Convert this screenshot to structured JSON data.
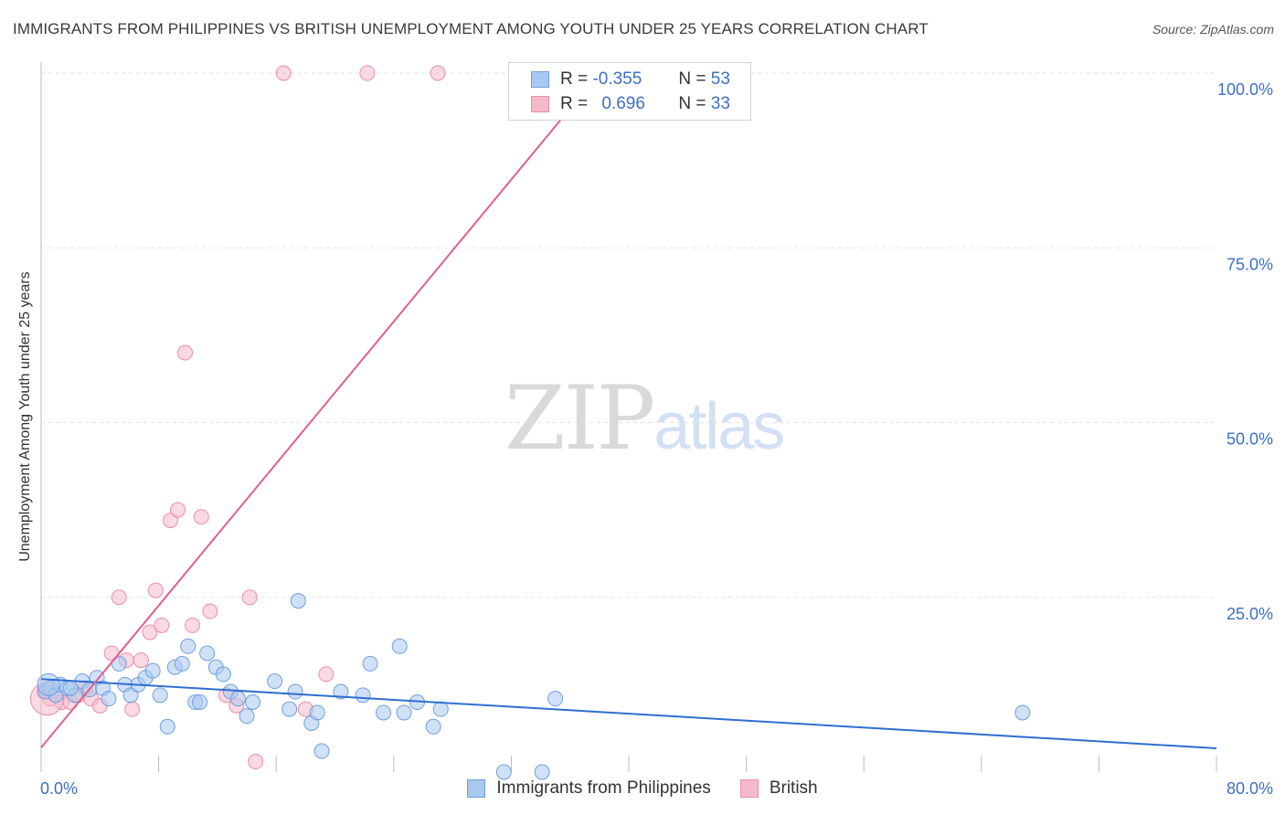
{
  "title": "IMMIGRANTS FROM PHILIPPINES VS BRITISH UNEMPLOYMENT AMONG YOUTH UNDER 25 YEARS CORRELATION CHART",
  "source": "Source: ZipAtlas.com",
  "watermark": {
    "zip": "ZIP",
    "atlas": "atlas"
  },
  "legend": {
    "series1": {
      "r_label": "R =",
      "r_value": "-0.355",
      "n_label": "N =",
      "n_value": "53"
    },
    "series2": {
      "r_label": "R =",
      "r_value": "0.696",
      "n_label": "N =",
      "n_value": "33"
    }
  },
  "colors": {
    "blue_fill": "#a9c8ef",
    "blue_stroke": "#6f9fe0",
    "blue_line": "#2f6fcf",
    "pink_fill": "#f5b9ca",
    "pink_stroke": "#ea8eaa",
    "pink_line": "#e0608a",
    "tick_text": "#3c6fc6",
    "grid": "#e2e2e2"
  },
  "chart_data": {
    "type": "scatter",
    "xlabel": "",
    "ylabel": "Unemployment Among Youth under 25 years",
    "xlim": [
      0,
      80
    ],
    "ylim": [
      0,
      100
    ],
    "x_tick_labels": [
      "0.0%",
      "80.0%"
    ],
    "y_ticks": [
      25,
      50,
      75,
      100
    ],
    "y_tick_labels": [
      "25.0%",
      "50.0%",
      "75.0%",
      "100.0%"
    ],
    "grid": true,
    "series": [
      {
        "name": "Immigrants from Philippines",
        "color": "#a9c8ef",
        "points": [
          [
            0.3,
            11.5
          ],
          [
            0.6,
            12.0
          ],
          [
            1.0,
            11.0
          ],
          [
            1.3,
            12.5
          ],
          [
            1.8,
            12.0
          ],
          [
            2.3,
            11.0
          ],
          [
            2.8,
            13.0
          ],
          [
            3.3,
            11.8
          ],
          [
            3.8,
            13.5
          ],
          [
            4.2,
            12.0
          ],
          [
            4.6,
            10.5
          ],
          [
            5.3,
            15.5
          ],
          [
            5.7,
            12.5
          ],
          [
            6.1,
            11.0
          ],
          [
            6.6,
            12.5
          ],
          [
            7.1,
            13.5
          ],
          [
            7.6,
            14.5
          ],
          [
            8.1,
            11.0
          ],
          [
            8.6,
            6.5
          ],
          [
            9.1,
            15.0
          ],
          [
            9.6,
            15.5
          ],
          [
            10.0,
            18.0
          ],
          [
            10.5,
            10.0
          ],
          [
            10.8,
            10.0
          ],
          [
            11.3,
            17.0
          ],
          [
            11.9,
            15.0
          ],
          [
            12.4,
            14.0
          ],
          [
            12.9,
            11.5
          ],
          [
            13.4,
            10.5
          ],
          [
            14.0,
            8.0
          ],
          [
            14.4,
            10.0
          ],
          [
            15.9,
            13.0
          ],
          [
            16.9,
            9.0
          ],
          [
            17.3,
            11.5
          ],
          [
            17.5,
            24.5
          ],
          [
            18.4,
            7.0
          ],
          [
            18.8,
            8.5
          ],
          [
            19.1,
            3.0
          ],
          [
            20.4,
            11.5
          ],
          [
            21.9,
            11.0
          ],
          [
            22.4,
            15.5
          ],
          [
            23.3,
            8.5
          ],
          [
            24.4,
            18.0
          ],
          [
            24.7,
            8.5
          ],
          [
            25.6,
            10.0
          ],
          [
            26.7,
            6.5
          ],
          [
            27.2,
            9.0
          ],
          [
            31.5,
            0.0
          ],
          [
            34.1,
            0.0
          ],
          [
            35.0,
            10.5
          ],
          [
            66.8,
            8.5
          ],
          [
            0.5,
            12.5
          ],
          [
            2.0,
            12.0
          ]
        ]
      },
      {
        "name": "British",
        "color": "#f5b9ca",
        "points": [
          [
            0.2,
            11.5
          ],
          [
            0.6,
            10.5
          ],
          [
            1.0,
            11.0
          ],
          [
            1.4,
            10.0
          ],
          [
            2.0,
            10.0
          ],
          [
            2.5,
            11.0
          ],
          [
            3.0,
            12.0
          ],
          [
            3.4,
            10.5
          ],
          [
            4.0,
            9.5
          ],
          [
            4.8,
            17.0
          ],
          [
            5.3,
            25.0
          ],
          [
            5.8,
            16.0
          ],
          [
            6.2,
            9.0
          ],
          [
            6.8,
            16.0
          ],
          [
            7.4,
            20.0
          ],
          [
            7.8,
            26.0
          ],
          [
            8.2,
            21.0
          ],
          [
            8.8,
            36.0
          ],
          [
            9.3,
            37.5
          ],
          [
            9.8,
            60.0
          ],
          [
            10.3,
            21.0
          ],
          [
            10.9,
            36.5
          ],
          [
            11.5,
            23.0
          ],
          [
            12.6,
            11.0
          ],
          [
            13.3,
            9.5
          ],
          [
            14.2,
            25.0
          ],
          [
            14.6,
            1.5
          ],
          [
            16.5,
            100.0
          ],
          [
            18.0,
            9.0
          ],
          [
            19.4,
            14.0
          ],
          [
            22.2,
            100.0
          ],
          [
            27.0,
            100.0
          ],
          [
            0.4,
            10.5
          ]
        ]
      }
    ],
    "trend_lines": [
      {
        "series": "Immigrants from Philippines",
        "x": [
          0,
          80
        ],
        "y": [
          13.3,
          3.4
        ]
      },
      {
        "series": "British",
        "x": [
          0,
          38
        ],
        "y": [
          3.5,
          100
        ]
      }
    ]
  }
}
